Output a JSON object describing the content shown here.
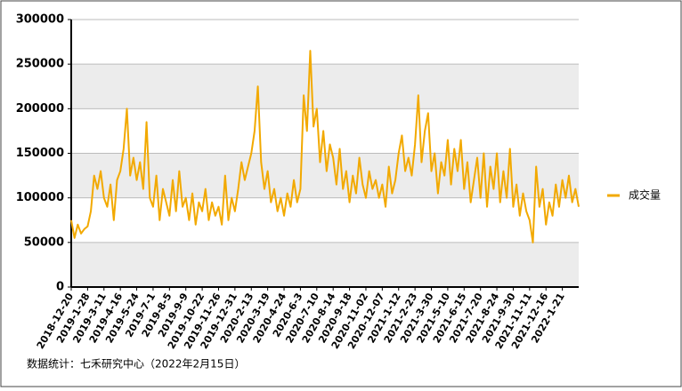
{
  "chart_data": {
    "type": "line",
    "categories": [
      "2018-12-20",
      null,
      null,
      null,
      null,
      "2019-1-28",
      null,
      null,
      null,
      null,
      "2019-3-11",
      null,
      null,
      null,
      null,
      "2019-4-16",
      null,
      null,
      null,
      null,
      "2019-5-24",
      null,
      null,
      null,
      null,
      "2019-7-1",
      null,
      null,
      null,
      null,
      "2019-8-5",
      null,
      null,
      null,
      null,
      "2019-9-9",
      null,
      null,
      null,
      null,
      "2019-10-22",
      null,
      null,
      null,
      null,
      "2019-11-26",
      null,
      null,
      null,
      null,
      "2019-12-31",
      null,
      null,
      null,
      null,
      "2020-2-13",
      null,
      null,
      null,
      null,
      "2020-3-19",
      null,
      null,
      null,
      null,
      "2020-4-24",
      null,
      null,
      null,
      null,
      "2020-6-3",
      null,
      null,
      null,
      null,
      "2020-7-10",
      null,
      null,
      null,
      null,
      "2020-8-14",
      null,
      null,
      null,
      null,
      "2020-9-18",
      null,
      null,
      null,
      null,
      "2020-11-02",
      null,
      null,
      null,
      null,
      "2020-12-07",
      null,
      null,
      null,
      null,
      "2021-1-12",
      null,
      null,
      null,
      null,
      "2021-2-23",
      null,
      null,
      null,
      null,
      "2021-3-30",
      null,
      null,
      null,
      null,
      "2021-5-10",
      null,
      null,
      null,
      null,
      "2021-6-15",
      null,
      null,
      null,
      null,
      "2021-7-20",
      null,
      null,
      null,
      null,
      "2021-8-24",
      null,
      null,
      null,
      null,
      "2021-9-30",
      null,
      null,
      null,
      null,
      "2021-11-11",
      null,
      null,
      null,
      null,
      "2021-12-16",
      null,
      null,
      null,
      null,
      "2022-1-21",
      null,
      null,
      null,
      null,
      null
    ],
    "series": [
      {
        "name": "成交量",
        "color": "#f2a900",
        "values": [
          75000,
          55000,
          70000,
          60000,
          65000,
          68000,
          85000,
          125000,
          110000,
          130000,
          100000,
          90000,
          115000,
          75000,
          120000,
          130000,
          155000,
          200000,
          125000,
          145000,
          120000,
          140000,
          110000,
          185000,
          100000,
          90000,
          125000,
          75000,
          110000,
          95000,
          80000,
          120000,
          85000,
          130000,
          90000,
          100000,
          75000,
          105000,
          70000,
          95000,
          85000,
          110000,
          75000,
          95000,
          80000,
          90000,
          70000,
          125000,
          75000,
          100000,
          85000,
          110000,
          140000,
          120000,
          135000,
          150000,
          175000,
          225000,
          140000,
          110000,
          130000,
          95000,
          110000,
          85000,
          100000,
          80000,
          105000,
          90000,
          120000,
          95000,
          110000,
          215000,
          175000,
          265000,
          180000,
          200000,
          140000,
          175000,
          130000,
          160000,
          145000,
          115000,
          155000,
          110000,
          130000,
          95000,
          125000,
          105000,
          145000,
          115000,
          100000,
          130000,
          110000,
          120000,
          100000,
          115000,
          90000,
          135000,
          105000,
          120000,
          150000,
          170000,
          130000,
          145000,
          125000,
          160000,
          215000,
          140000,
          175000,
          195000,
          130000,
          150000,
          105000,
          140000,
          125000,
          165000,
          115000,
          155000,
          130000,
          165000,
          110000,
          140000,
          95000,
          120000,
          145000,
          100000,
          150000,
          90000,
          135000,
          110000,
          150000,
          95000,
          130000,
          100000,
          155000,
          90000,
          115000,
          80000,
          105000,
          85000,
          75000,
          50000,
          135000,
          90000,
          110000,
          70000,
          95000,
          80000,
          115000,
          90000,
          120000,
          100000,
          125000,
          95000,
          110000,
          90000
        ]
      }
    ],
    "ylim": [
      0,
      300000
    ],
    "yticks": [
      0,
      50000,
      100000,
      150000,
      200000,
      250000,
      300000
    ],
    "grid": true,
    "legend": "right",
    "source": "数据统计：七禾研究中心（2022年2月15日）"
  }
}
